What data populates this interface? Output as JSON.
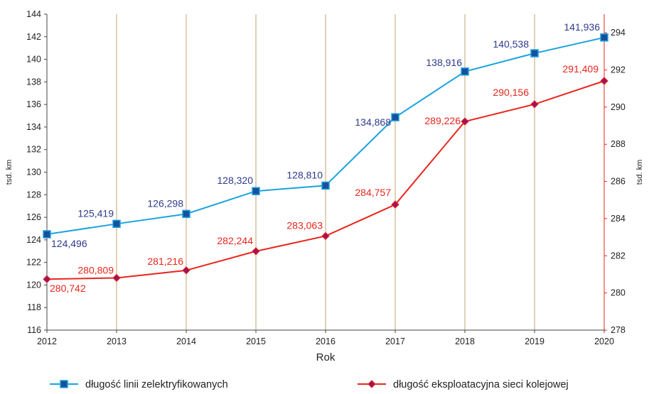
{
  "chart_data": {
    "type": "line",
    "x": [
      "2012",
      "2013",
      "2014",
      "2015",
      "2016",
      "2017",
      "2018",
      "2019",
      "2020"
    ],
    "xlabel": "Rok",
    "ylabel_left": "tsd. km",
    "ylabel_right": "tsd. km",
    "ylim_left": [
      116,
      144
    ],
    "yticks_left": [
      "116",
      "118",
      "120",
      "122",
      "124",
      "126",
      "128",
      "130",
      "132",
      "134",
      "136",
      "138",
      "140",
      "142",
      "144"
    ],
    "ylim_right": [
      278,
      295
    ],
    "yticks_right": [
      "278",
      "280",
      "282",
      "284",
      "286",
      "288",
      "290",
      "292",
      "294"
    ],
    "grid": "vertical",
    "legend_position": "bottom",
    "series": [
      {
        "name": "długość linii zelektryfikowanych",
        "axis": "left",
        "color": "#1ba3dd",
        "marker_color": "#1a4f9e",
        "marker": "square",
        "label_color": "#2e3a8c",
        "values": [
          124.496,
          125.419,
          126.298,
          128.32,
          128.81,
          134.868,
          138.916,
          140.538,
          141.936
        ],
        "labels": [
          "124,496",
          "125,419",
          "126,298",
          "128,320",
          "128,810",
          "134,868",
          "138,916",
          "140,538",
          "141,936"
        ]
      },
      {
        "name": "długość eksploatacyjna sieci kolejowej",
        "axis": "right",
        "color": "#e8261c",
        "marker_color": "#a0135c",
        "marker": "diamond",
        "label_color": "#e8261c",
        "values": [
          280.742,
          280.809,
          281.216,
          282.244,
          283.063,
          284.757,
          289.226,
          290.156,
          291.409
        ],
        "labels": [
          "280,742",
          "280,809",
          "281,216",
          "282,244",
          "283,063",
          "284,757",
          "289,226",
          "290,156",
          "291,409"
        ]
      }
    ]
  }
}
